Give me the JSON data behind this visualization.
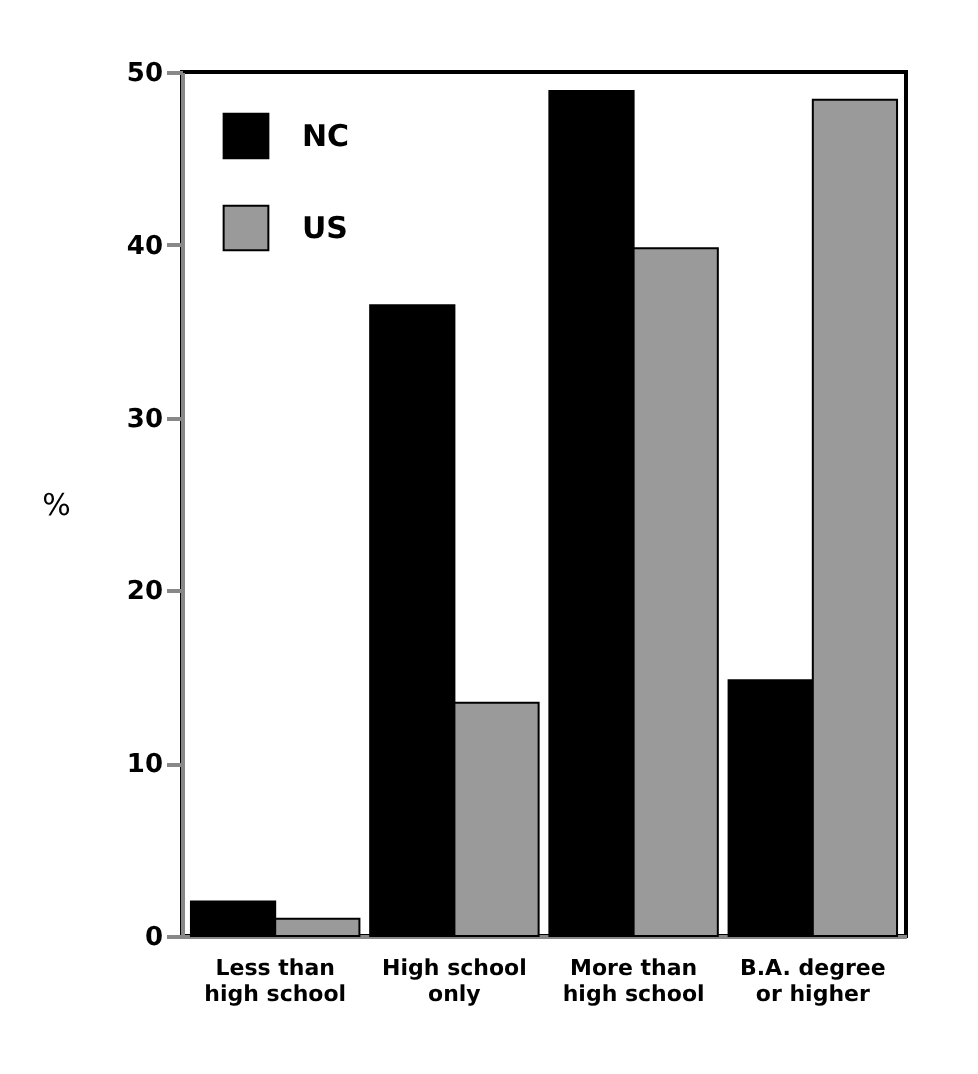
{
  "chart_data": {
    "type": "bar",
    "ylabel": "%",
    "categories": [
      "Less than high school",
      "High school only",
      "More than high school",
      "B.A. degree or higher"
    ],
    "series": [
      {
        "name": "NC",
        "color": "#000000",
        "values": [
          2.0,
          36.5,
          48.9,
          14.8
        ]
      },
      {
        "name": "US",
        "color": "#9a9a9a",
        "values": [
          1.0,
          13.5,
          39.8,
          48.4
        ]
      }
    ],
    "ylim": [
      0,
      50
    ],
    "yticks": [
      0,
      10,
      20,
      30,
      40,
      50
    ],
    "grid": false,
    "legend": "top left"
  }
}
